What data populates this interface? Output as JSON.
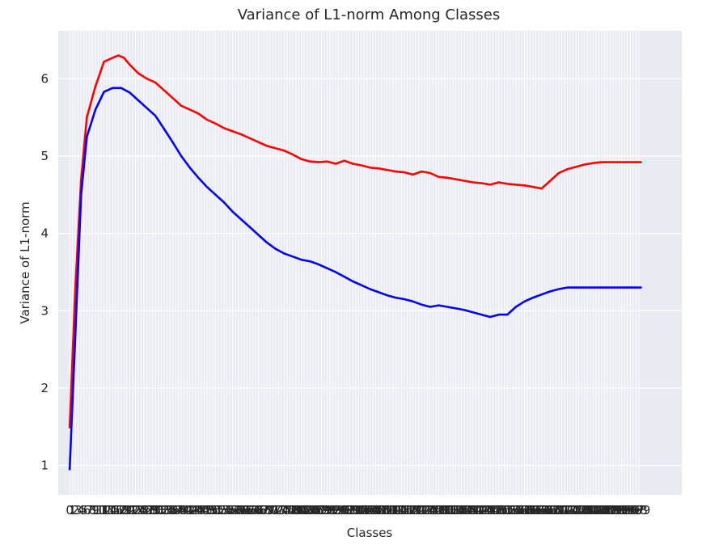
{
  "chart_data": {
    "type": "line",
    "title": "Variance of L1-norm Among Classes",
    "xlabel": "Classes",
    "ylabel": "Variance of L1-norm",
    "xlim": [
      -4,
      214
    ],
    "ylim": [
      0.62,
      6.62
    ],
    "yticks": [
      1,
      2,
      3,
      4,
      5,
      6
    ],
    "ytick_labels": [
      "1",
      "2",
      "3",
      "4",
      "5",
      "6"
    ],
    "x_tick_count": 200,
    "x_tick_labels_note": "0 … 199 (one tick per class, labels overlap)",
    "grid": true,
    "background": "#eaeaf2",
    "series": [
      {
        "color": "#ff0000",
        "points": [
          [
            0,
            1.48
          ],
          [
            2,
            3.3
          ],
          [
            4,
            4.7
          ],
          [
            6,
            5.5
          ],
          [
            9,
            5.9
          ],
          [
            12,
            6.22
          ],
          [
            15,
            6.27
          ],
          [
            17,
            6.3
          ],
          [
            19,
            6.27
          ],
          [
            21,
            6.18
          ],
          [
            24,
            6.07
          ],
          [
            27,
            6.0
          ],
          [
            30,
            5.95
          ],
          [
            33,
            5.85
          ],
          [
            36,
            5.75
          ],
          [
            39,
            5.65
          ],
          [
            42,
            5.6
          ],
          [
            45,
            5.55
          ],
          [
            48,
            5.47
          ],
          [
            51,
            5.42
          ],
          [
            54,
            5.36
          ],
          [
            57,
            5.32
          ],
          [
            60,
            5.28
          ],
          [
            63,
            5.23
          ],
          [
            66,
            5.18
          ],
          [
            69,
            5.13
          ],
          [
            72,
            5.1
          ],
          [
            75,
            5.07
          ],
          [
            78,
            5.02
          ],
          [
            81,
            4.96
          ],
          [
            84,
            4.93
          ],
          [
            87,
            4.92
          ],
          [
            90,
            4.93
          ],
          [
            93,
            4.9
          ],
          [
            96,
            4.94
          ],
          [
            99,
            4.9
          ],
          [
            102,
            4.88
          ],
          [
            105,
            4.85
          ],
          [
            108,
            4.84
          ],
          [
            111,
            4.82
          ],
          [
            114,
            4.8
          ],
          [
            117,
            4.79
          ],
          [
            120,
            4.76
          ],
          [
            123,
            4.8
          ],
          [
            126,
            4.78
          ],
          [
            129,
            4.73
          ],
          [
            132,
            4.72
          ],
          [
            135,
            4.7
          ],
          [
            138,
            4.68
          ],
          [
            141,
            4.66
          ],
          [
            144,
            4.65
          ],
          [
            147,
            4.63
          ],
          [
            150,
            4.66
          ],
          [
            153,
            4.64
          ],
          [
            156,
            4.63
          ],
          [
            159,
            4.62
          ],
          [
            162,
            4.6
          ],
          [
            165,
            4.58
          ],
          [
            168,
            4.68
          ],
          [
            171,
            4.78
          ],
          [
            174,
            4.83
          ],
          [
            177,
            4.86
          ],
          [
            180,
            4.89
          ],
          [
            183,
            4.91
          ],
          [
            186,
            4.92
          ],
          [
            189,
            4.92
          ],
          [
            192,
            4.92
          ],
          [
            195,
            4.92
          ],
          [
            198,
            4.92
          ],
          [
            200,
            4.92
          ]
        ]
      },
      {
        "color": "#0000ff",
        "points": [
          [
            0,
            0.94
          ],
          [
            2,
            2.7
          ],
          [
            4,
            4.5
          ],
          [
            6,
            5.25
          ],
          [
            9,
            5.6
          ],
          [
            12,
            5.83
          ],
          [
            15,
            5.88
          ],
          [
            18,
            5.88
          ],
          [
            21,
            5.82
          ],
          [
            24,
            5.72
          ],
          [
            27,
            5.62
          ],
          [
            30,
            5.52
          ],
          [
            33,
            5.35
          ],
          [
            36,
            5.18
          ],
          [
            39,
            5.0
          ],
          [
            42,
            4.85
          ],
          [
            45,
            4.72
          ],
          [
            48,
            4.6
          ],
          [
            51,
            4.5
          ],
          [
            54,
            4.4
          ],
          [
            57,
            4.28
          ],
          [
            60,
            4.18
          ],
          [
            63,
            4.08
          ],
          [
            66,
            3.98
          ],
          [
            69,
            3.88
          ],
          [
            72,
            3.8
          ],
          [
            75,
            3.74
          ],
          [
            78,
            3.7
          ],
          [
            81,
            3.66
          ],
          [
            84,
            3.64
          ],
          [
            87,
            3.6
          ],
          [
            90,
            3.55
          ],
          [
            93,
            3.5
          ],
          [
            96,
            3.44
          ],
          [
            99,
            3.38
          ],
          [
            102,
            3.33
          ],
          [
            105,
            3.28
          ],
          [
            108,
            3.24
          ],
          [
            111,
            3.2
          ],
          [
            114,
            3.17
          ],
          [
            117,
            3.15
          ],
          [
            120,
            3.12
          ],
          [
            123,
            3.08
          ],
          [
            126,
            3.05
          ],
          [
            129,
            3.07
          ],
          [
            132,
            3.05
          ],
          [
            135,
            3.03
          ],
          [
            138,
            3.01
          ],
          [
            141,
            2.98
          ],
          [
            144,
            2.95
          ],
          [
            147,
            2.92
          ],
          [
            150,
            2.95
          ],
          [
            153,
            2.95
          ],
          [
            156,
            3.05
          ],
          [
            159,
            3.12
          ],
          [
            162,
            3.17
          ],
          [
            165,
            3.21
          ],
          [
            168,
            3.25
          ],
          [
            171,
            3.28
          ],
          [
            174,
            3.3
          ],
          [
            177,
            3.3
          ],
          [
            180,
            3.3
          ],
          [
            183,
            3.3
          ],
          [
            186,
            3.3
          ],
          [
            189,
            3.3
          ],
          [
            192,
            3.3
          ],
          [
            195,
            3.3
          ],
          [
            198,
            3.3
          ],
          [
            200,
            3.3
          ]
        ]
      }
    ]
  }
}
